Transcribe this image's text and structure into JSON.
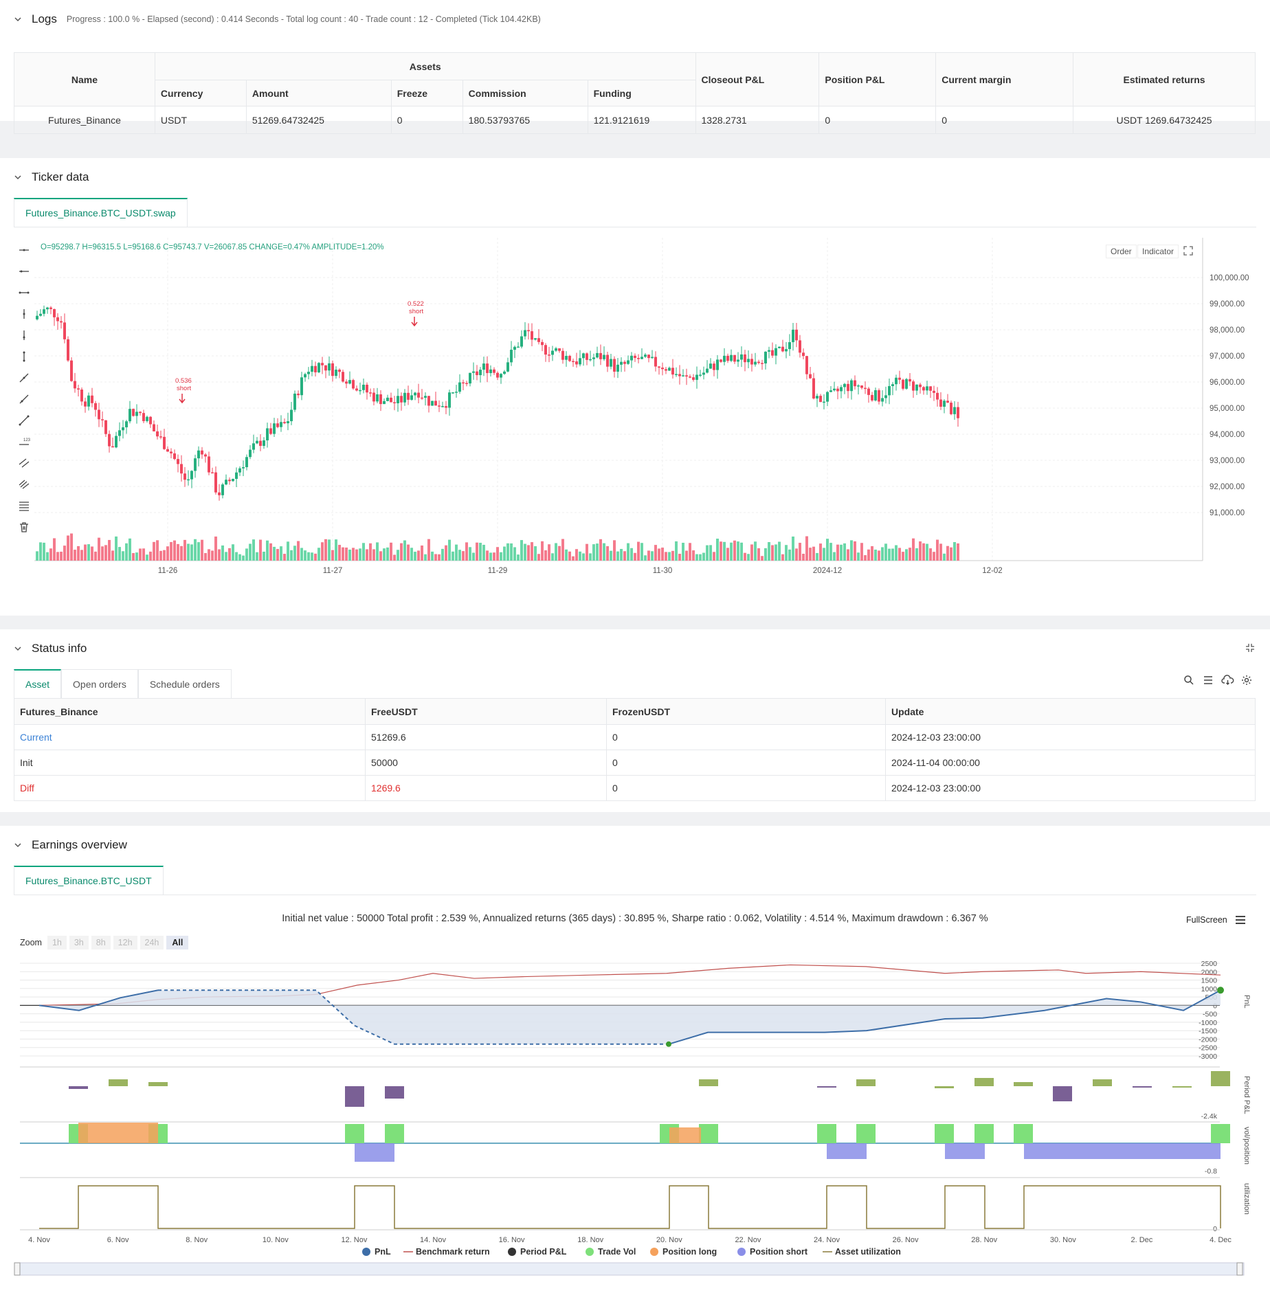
{
  "logs": {
    "title": "Logs",
    "meta": "Progress : 100.0 % - Elapsed (second) : 0.414  Seconds - Total log count : 40 - Trade count : 12 - Completed (Tick 104.42KB)",
    "headers": {
      "name": "Name",
      "assets": "Assets",
      "currency": "Currency",
      "amount": "Amount",
      "freeze": "Freeze",
      "commission": "Commission",
      "funding": "Funding",
      "closeout": "Closeout P&L",
      "position": "Position P&L",
      "margin": "Current margin",
      "returns": "Estimated returns"
    },
    "row": {
      "name": "Futures_Binance",
      "currency": "USDT",
      "amount": "51269.64732425",
      "freeze": "0",
      "commission": "180.53793765",
      "funding": "121.9121619",
      "closeout": "1328.2731",
      "position": "0",
      "margin": "0",
      "returns": "USDT 1269.64732425"
    }
  },
  "ticker": {
    "title": "Ticker data",
    "tab": "Futures_Binance.BTC_USDT.swap",
    "ohlc": "O=95298.7  H=96315.5  L=95168.6  C=95743.7  V=26067.85  CHANGE=0.47%  AMPLITUDE=1.20%",
    "buttons": {
      "order": "Order",
      "indicator": "Indicator"
    },
    "y_ticks": [
      "100,000.00",
      "99,000.00",
      "98,000.00",
      "97,000.00",
      "96,000.00",
      "95,000.00",
      "94,000.00",
      "93,000.00",
      "92,000.00",
      "91,000.00"
    ],
    "x_ticks": [
      "11-26",
      "11-27",
      "11-29",
      "11-30",
      "2024-12",
      "12-02"
    ],
    "annotations": [
      {
        "value": "0.536",
        "label": "short"
      },
      {
        "value": "0.522",
        "label": "short"
      }
    ]
  },
  "status": {
    "title": "Status info",
    "tabs": [
      "Asset",
      "Open orders",
      "Schedule orders"
    ],
    "headers": [
      "Futures_Binance",
      "FreeUSDT",
      "FrozenUSDT",
      "Update"
    ],
    "rows": [
      {
        "label": "Current",
        "free": "51269.6",
        "frozen": "0",
        "update": "2024-12-03 23:00:00"
      },
      {
        "label": "Init",
        "free": "50000",
        "frozen": "0",
        "update": "2024-11-04 00:00:00"
      },
      {
        "label": "Diff",
        "free": "1269.6",
        "frozen": "0",
        "update": "2024-12-03 23:00:00"
      }
    ]
  },
  "earnings": {
    "title": "Earnings overview",
    "tab": "Futures_Binance.BTC_USDT",
    "summary": "Initial net value : 50000  Total profit : 2.539 %, Annualized returns (365 days) : 30.895 %, Sharpe ratio : 0.062, Volatility : 4.514 %, Maximum drawdown : 6.367 %",
    "fullscreen": "FullScreen",
    "zoom_label": "Zoom",
    "zoom_buttons": [
      "1h",
      "3h",
      "8h",
      "12h",
      "24h",
      "All"
    ],
    "pnl_ticks": [
      "2500",
      "2000",
      "1500",
      "1000",
      "500",
      "0",
      "-500",
      "-1000",
      "-1500",
      "-2000",
      "-2500",
      "-3000"
    ],
    "axis_labels": {
      "pnl": "PnL",
      "period": "Period P&L",
      "vol": "vol/position",
      "util": "utilization"
    },
    "period_tick": "-2.4k",
    "vol_tick": "-0.8",
    "util_tick": "0",
    "x_ticks": [
      "4. Nov",
      "6. Nov",
      "8. Nov",
      "10. Nov",
      "12. Nov",
      "14. Nov",
      "16. Nov",
      "18. Nov",
      "20. Nov",
      "22. Nov",
      "24. Nov",
      "26. Nov",
      "28. Nov",
      "30. Nov",
      "2. Dec",
      "4. Dec"
    ],
    "legend": [
      "PnL",
      "Benchmark return",
      "Period P&L",
      "Trade Vol",
      "Position long",
      "Position short",
      "Asset utilization"
    ],
    "colors": {
      "pnl": "#3d6ea8",
      "benchmark": "#c0504d",
      "period": "#333333",
      "tradevol": "#7ee07a",
      "long": "#f5a15c",
      "short": "#8a8ee8",
      "util": "#8a7a3a",
      "up": "#26b07f",
      "down": "#f0475e"
    }
  }
}
